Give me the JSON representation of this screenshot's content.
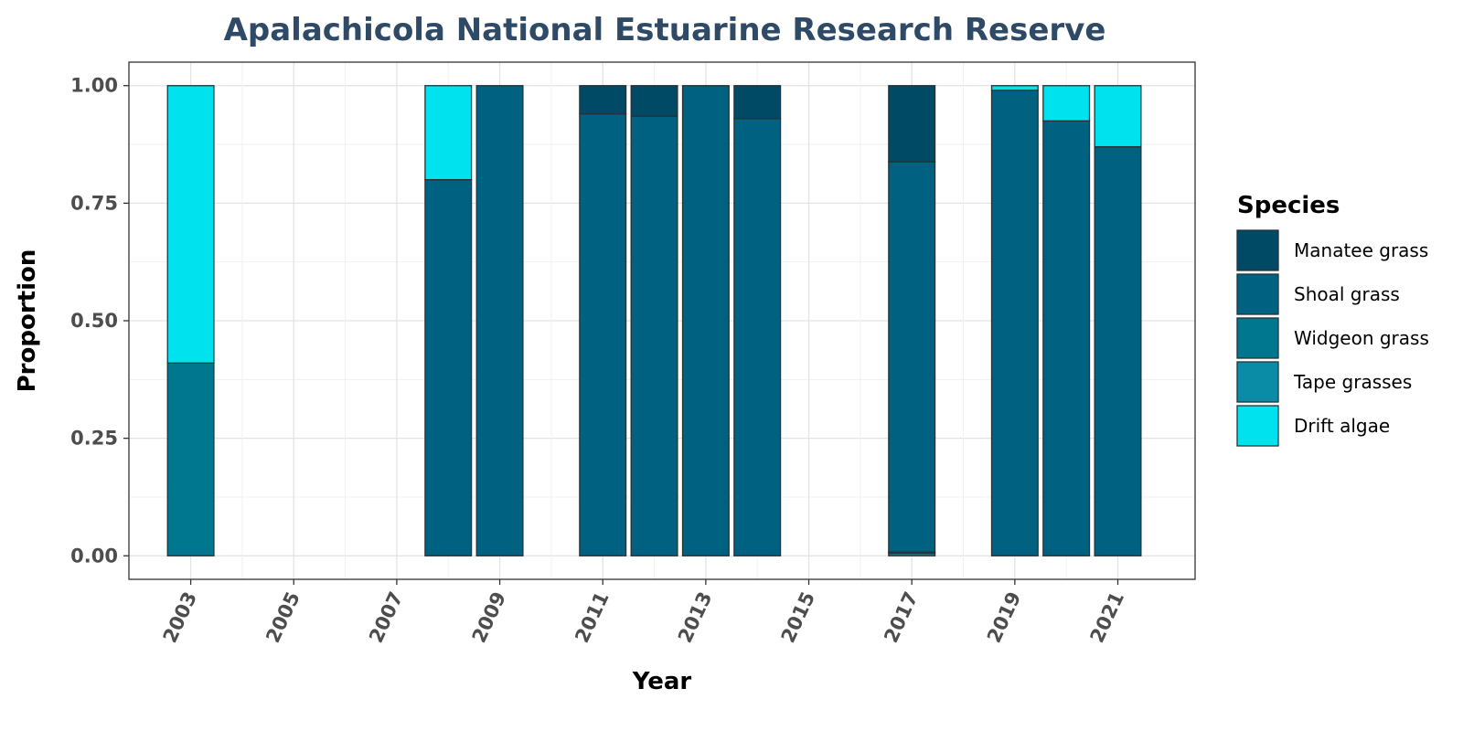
{
  "chart_data": {
    "type": "bar",
    "stacked": true,
    "title": "Apalachicola National Estuarine Research Reserve",
    "xlabel": "Year",
    "ylabel": "Proportion",
    "xlim": [
      2001.8,
      2022.5
    ],
    "ylim": [
      -0.05,
      1.05
    ],
    "x_ticks": [
      "2003",
      "2005",
      "2007",
      "2009",
      "2011",
      "2013",
      "2015",
      "2017",
      "2019",
      "2021"
    ],
    "y_ticks": [
      "0.00",
      "0.25",
      "0.50",
      "0.75",
      "1.00"
    ],
    "grid": true,
    "legend_position": "right",
    "legend_title": "Species",
    "categories": [
      "2003",
      "2008",
      "2009",
      "2011",
      "2012",
      "2013",
      "2014",
      "2017",
      "2019",
      "2020",
      "2021"
    ],
    "series": [
      {
        "name": "Tape grasses",
        "color": "#0a8ca6",
        "values": [
          0,
          0,
          0,
          0,
          0,
          0,
          0,
          0.005,
          0,
          0,
          0
        ]
      },
      {
        "name": "Widgeon grass",
        "color": "#00778f",
        "values": [
          0.41,
          0,
          0,
          0,
          0,
          0,
          0,
          0.003,
          0,
          0,
          0
        ]
      },
      {
        "name": "Shoal grass",
        "color": "#006180",
        "values": [
          0,
          0.8,
          1.0,
          0.94,
          0.935,
          1.0,
          0.93,
          0.83,
          0.99,
          0.925,
          0.87
        ]
      },
      {
        "name": "Manatee grass",
        "color": "#004a66",
        "values": [
          0,
          0,
          0,
          0.06,
          0.065,
          0,
          0.07,
          0.162,
          0,
          0,
          0
        ]
      },
      {
        "name": "Drift algae",
        "color": "#00e3ee",
        "values": [
          0.59,
          0.2,
          0,
          0,
          0,
          0,
          0,
          0,
          0.01,
          0.075,
          0.13
        ]
      }
    ],
    "legend_order": [
      "Manatee grass",
      "Shoal grass",
      "Widgeon grass",
      "Tape grasses",
      "Drift algae"
    ]
  }
}
